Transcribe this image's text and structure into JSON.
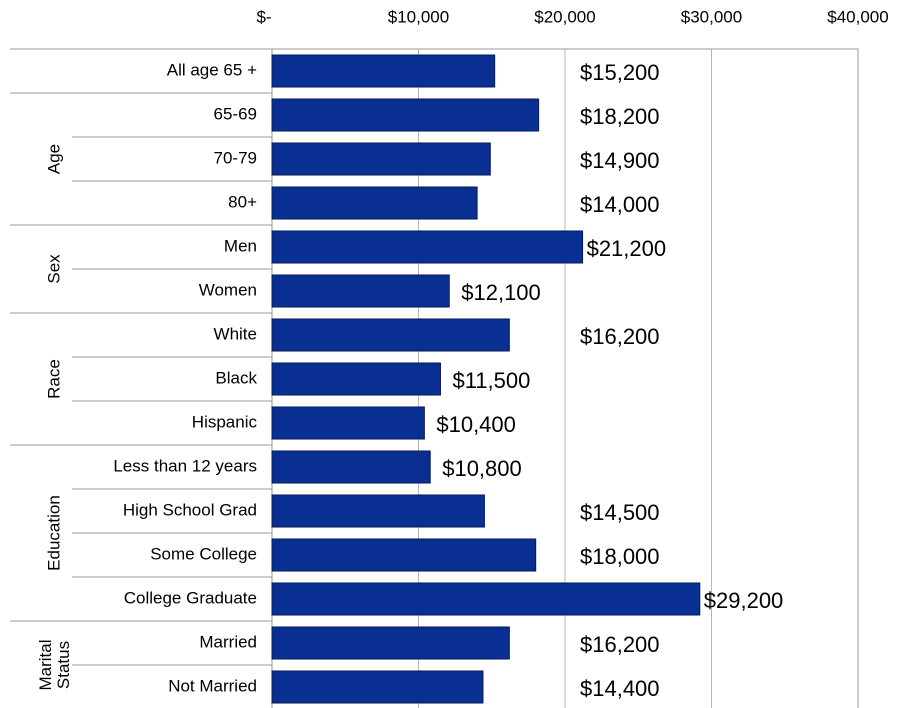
{
  "chart_data": {
    "type": "bar",
    "orientation": "horizontal",
    "color": "#0a2f92",
    "grid": true,
    "xlim": [
      0,
      40000
    ],
    "xticks": [
      {
        "value": 0,
        "label": "$-"
      },
      {
        "value": 10000,
        "label": "$10,000"
      },
      {
        "value": 20000,
        "label": "$20,000"
      },
      {
        "value": 30000,
        "label": "$30,000"
      },
      {
        "value": 40000,
        "label": "$40,000"
      }
    ],
    "groups": [
      {
        "label": null,
        "categories": [
          "All age 65 +"
        ],
        "values": [
          15200
        ],
        "value_labels": [
          "$15,200"
        ]
      },
      {
        "label": "Age",
        "categories": [
          "65-69",
          "70-79",
          "80+"
        ],
        "values": [
          18200,
          14900,
          14000
        ],
        "value_labels": [
          "$18,200",
          "$14,900",
          "$14,000"
        ]
      },
      {
        "label": "Sex",
        "categories": [
          "Men",
          "Women"
        ],
        "values": [
          21200,
          12100
        ],
        "value_labels": [
          "$21,200",
          "$12,100"
        ]
      },
      {
        "label": "Race",
        "categories": [
          "White",
          "Black",
          "Hispanic"
        ],
        "values": [
          16200,
          11500,
          10400
        ],
        "value_labels": [
          "$16,200",
          "$11,500",
          "$10,400"
        ]
      },
      {
        "label": "Education",
        "categories": [
          "Less than 12 years",
          "High School Grad",
          "Some College",
          "College Graduate"
        ],
        "values": [
          10800,
          14500,
          18000,
          29200
        ],
        "value_labels": [
          "$10,800",
          "$14,500",
          "$18,000",
          "$29,200"
        ]
      },
      {
        "label": "Marital Status",
        "categories": [
          "Married",
          "Not Married"
        ],
        "values": [
          16200,
          14400
        ],
        "value_labels": [
          "$16,200",
          "$14,400"
        ]
      }
    ]
  }
}
